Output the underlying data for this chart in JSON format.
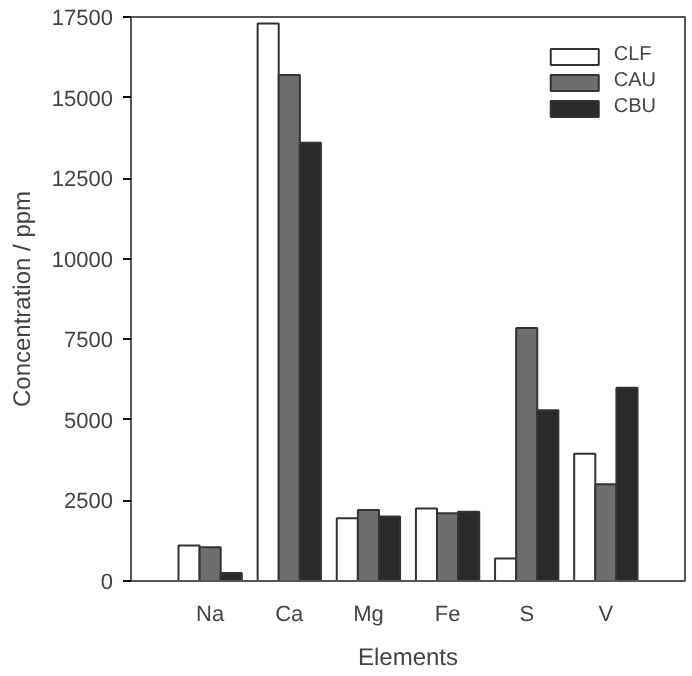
{
  "chart_data": {
    "type": "bar",
    "xlabel": "Elements",
    "ylabel": "Concentration / ppm",
    "categories": [
      "Na",
      "Ca",
      "Mg",
      "Fe",
      "S",
      "V"
    ],
    "series": [
      {
        "name": "CLF",
        "color": "#ffffff",
        "values": [
          1100,
          17300,
          1950,
          2250,
          700,
          3950
        ]
      },
      {
        "name": "CAU",
        "color": "#6e6e6e",
        "values": [
          1050,
          15700,
          2200,
          2100,
          7850,
          3000
        ]
      },
      {
        "name": "CBU",
        "color": "#2a2a2a",
        "values": [
          250,
          13600,
          2000,
          2150,
          5300,
          6000
        ]
      }
    ],
    "ylim": [
      0,
      17500
    ],
    "yticks": [
      0,
      2500,
      5000,
      7500,
      10000,
      12500,
      15000,
      17500
    ],
    "grid": false,
    "legend": "top right"
  }
}
